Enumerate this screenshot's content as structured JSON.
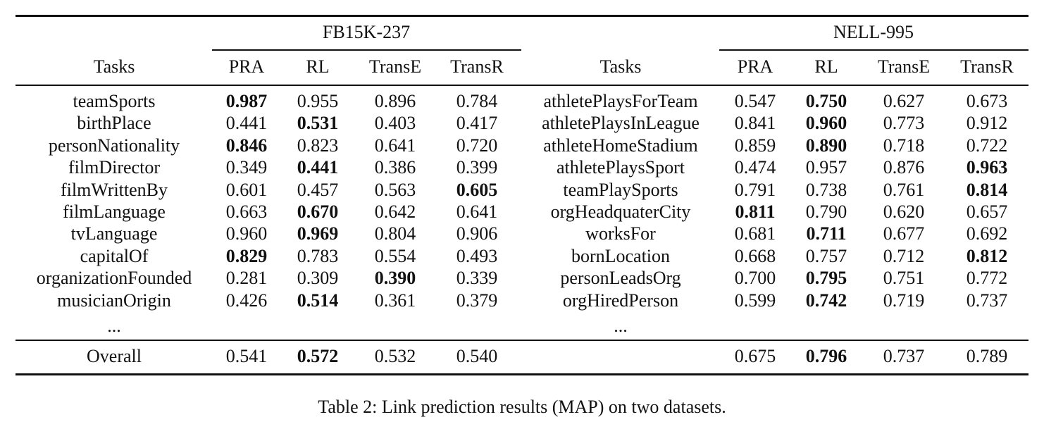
{
  "table": {
    "group_left": "FB15K-237",
    "group_right": "NELL-995",
    "headers": {
      "tasks": "Tasks",
      "methods": [
        "PRA",
        "RL",
        "TransE",
        "TransR"
      ]
    },
    "left_rows": [
      {
        "task": "teamSports",
        "values": [
          "0.987",
          "0.955",
          "0.896",
          "0.784"
        ],
        "bold": 0
      },
      {
        "task": "birthPlace",
        "values": [
          "0.441",
          "0.531",
          "0.403",
          "0.417"
        ],
        "bold": 1
      },
      {
        "task": "personNationality",
        "values": [
          "0.846",
          "0.823",
          "0.641",
          "0.720"
        ],
        "bold": 0
      },
      {
        "task": "filmDirector",
        "values": [
          "0.349",
          "0.441",
          "0.386",
          "0.399"
        ],
        "bold": 1
      },
      {
        "task": "filmWrittenBy",
        "values": [
          "0.601",
          "0.457",
          "0.563",
          "0.605"
        ],
        "bold": 3
      },
      {
        "task": "filmLanguage",
        "values": [
          "0.663",
          "0.670",
          "0.642",
          "0.641"
        ],
        "bold": 1
      },
      {
        "task": "tvLanguage",
        "values": [
          "0.960",
          "0.969",
          "0.804",
          "0.906"
        ],
        "bold": 1
      },
      {
        "task": "capitalOf",
        "values": [
          "0.829",
          "0.783",
          "0.554",
          "0.493"
        ],
        "bold": 0
      },
      {
        "task": "organizationFounded",
        "values": [
          "0.281",
          "0.309",
          "0.390",
          "0.339"
        ],
        "bold": 2
      },
      {
        "task": "musicianOrigin",
        "values": [
          "0.426",
          "0.514",
          "0.361",
          "0.379"
        ],
        "bold": 1
      }
    ],
    "right_rows": [
      {
        "task": "athletePlaysForTeam",
        "values": [
          "0.547",
          "0.750",
          "0.627",
          "0.673"
        ],
        "bold": 1
      },
      {
        "task": "athletePlaysInLeague",
        "values": [
          "0.841",
          "0.960",
          "0.773",
          "0.912"
        ],
        "bold": 1
      },
      {
        "task": "athleteHomeStadium",
        "values": [
          "0.859",
          "0.890",
          "0.718",
          "0.722"
        ],
        "bold": 1
      },
      {
        "task": "athletePlaysSport",
        "values": [
          "0.474",
          "0.957",
          "0.876",
          "0.963"
        ],
        "bold": 3
      },
      {
        "task": "teamPlaySports",
        "values": [
          "0.791",
          "0.738",
          "0.761",
          "0.814"
        ],
        "bold": 3
      },
      {
        "task": "orgHeadquaterCity",
        "values": [
          "0.811",
          "0.790",
          "0.620",
          "0.657"
        ],
        "bold": 0
      },
      {
        "task": "worksFor",
        "values": [
          "0.681",
          "0.711",
          "0.677",
          "0.692"
        ],
        "bold": 1
      },
      {
        "task": "bornLocation",
        "values": [
          "0.668",
          "0.757",
          "0.712",
          "0.812"
        ],
        "bold": 3
      },
      {
        "task": "personLeadsOrg",
        "values": [
          "0.700",
          "0.795",
          "0.751",
          "0.772"
        ],
        "bold": 1
      },
      {
        "task": "orgHiredPerson",
        "values": [
          "0.599",
          "0.742",
          "0.719",
          "0.737"
        ],
        "bold": 1
      }
    ],
    "ellipsis": "...",
    "overall": {
      "label": "Overall",
      "left_values": [
        "0.541",
        "0.572",
        "0.532",
        "0.540"
      ],
      "left_bold": 1,
      "right_values": [
        "0.675",
        "0.796",
        "0.737",
        "0.789"
      ],
      "right_bold": 1
    }
  },
  "caption": "Table 2: Link prediction results (MAP) on two datasets."
}
